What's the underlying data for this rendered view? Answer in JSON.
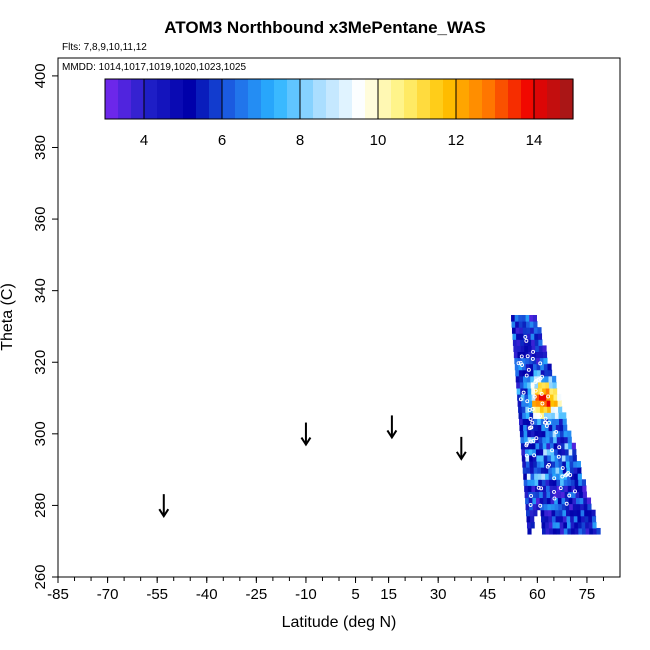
{
  "chart_data": {
    "type": "heatmap",
    "title": "ATOM3 Northbound x3MePentane_WAS",
    "flights_label": "Flts: 7,8,9,10,11,12",
    "dates_label": "MMDD: 1014,1017,1019,1020,1023,1025",
    "xlabel": "Latitude (deg N)",
    "ylabel": "Theta (C)",
    "xlim": [
      -85,
      85
    ],
    "ylim": [
      260,
      405
    ],
    "x_ticks": [
      "-85",
      "-70",
      "-55",
      "-40",
      "-25",
      "-10",
      "5",
      "15",
      "30",
      "45",
      "60",
      "75"
    ],
    "x_tick_values": [
      -85,
      -70,
      -55,
      -40,
      -25,
      -10,
      5,
      15,
      30,
      45,
      60,
      75
    ],
    "y_ticks": [
      "260",
      "280",
      "300",
      "320",
      "340",
      "360",
      "380",
      "400"
    ],
    "y_tick_values": [
      260,
      280,
      300,
      320,
      340,
      360,
      380,
      400
    ],
    "colorbar": {
      "range": [
        3,
        15
      ],
      "ticks": [
        "4",
        "6",
        "8",
        "10",
        "12",
        "14"
      ],
      "tick_values": [
        4,
        6,
        8,
        10,
        12,
        14
      ],
      "colors": [
        "#7a28f0",
        "#2020c8",
        "#0000aa",
        "#1e64e6",
        "#2ab4ff",
        "#a6dcff",
        "#ffffff",
        "#fff27a",
        "#ffc400",
        "#ff7800",
        "#f00000",
        "#9e1a1a"
      ]
    },
    "arrows_lat": [
      -53,
      -10,
      16,
      37
    ],
    "arrows_theta": [
      277,
      297,
      299,
      293
    ],
    "heatmap_region": {
      "lat_range": [
        52,
        78
      ],
      "theta_range": [
        272,
        332
      ],
      "max_value": 14,
      "max_location": {
        "lat": 62,
        "theta": 309
      }
    }
  }
}
